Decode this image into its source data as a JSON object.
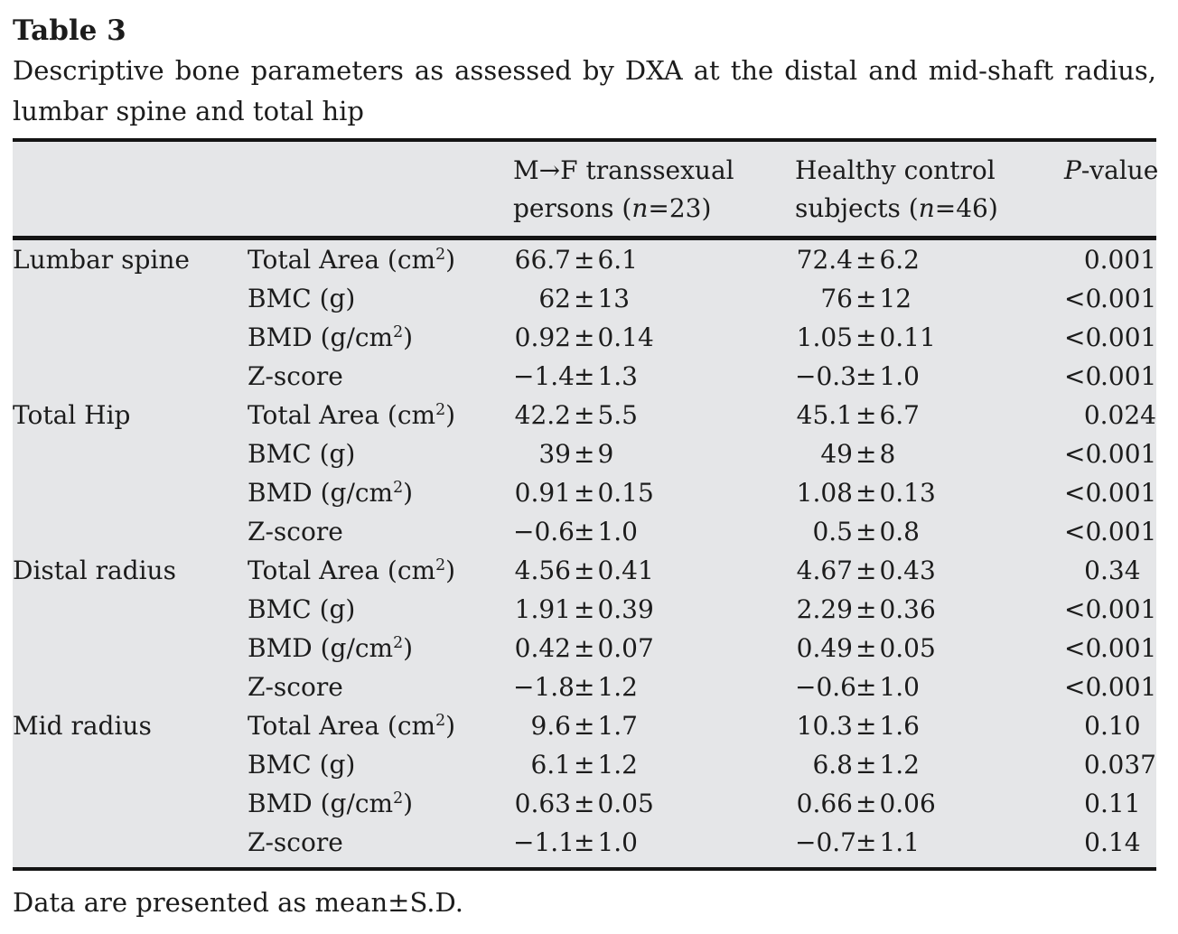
{
  "title": "Table 3",
  "caption": {
    "line1": "Descriptive bone parameters as assessed by DXA at the distal and mid-shaft radius,",
    "line2": "lumbar spine and total hip"
  },
  "header": {
    "region": "",
    "parameter": "",
    "transsexual": {
      "line1": "M→F transsexual",
      "line2": "persons (*n*=23)"
    },
    "control": {
      "line1": "Healthy control",
      "line2": "subjects (*n*=46)"
    },
    "p_value": "*P*-value"
  },
  "groups": [
    {
      "region": "Lumbar spine",
      "rows": [
        {
          "parameter": "Total Area (cm^2)",
          "transsexual": "66.7±6.1",
          "control": "72.4±6.2",
          "p_value": "0.001"
        },
        {
          "parameter": "BMC (g)",
          "transsexual": "62±13",
          "control": "76±12",
          "p_value": "<0.001"
        },
        {
          "parameter": "BMD (g/cm^2)",
          "transsexual": "0.92±0.14",
          "control": "1.05±0.11",
          "p_value": "<0.001"
        },
        {
          "parameter": "Z-score",
          "transsexual": "−1.4±1.3",
          "control": "−0.3±1.0",
          "p_value": "<0.001"
        }
      ]
    },
    {
      "region": "Total Hip",
      "rows": [
        {
          "parameter": "Total Area (cm^2)",
          "transsexual": "42.2±5.5",
          "control": "45.1±6.7",
          "p_value": "0.024"
        },
        {
          "parameter": "BMC (g)",
          "transsexual": "39±9",
          "control": "49±8",
          "p_value": "<0.001"
        },
        {
          "parameter": "BMD (g/cm^2)",
          "transsexual": "0.91±0.15",
          "control": "1.08±0.13",
          "p_value": "<0.001"
        },
        {
          "parameter": "Z-score",
          "transsexual": "−0.6±1.0",
          "control": "0.5±0.8",
          "p_value": "<0.001"
        }
      ]
    },
    {
      "region": "Distal radius",
      "rows": [
        {
          "parameter": "Total Area (cm^2)",
          "transsexual": "4.56±0.41",
          "control": "4.67±0.43",
          "p_value": "0.34"
        },
        {
          "parameter": "BMC (g)",
          "transsexual": "1.91±0.39",
          "control": "2.29±0.36",
          "p_value": "<0.001"
        },
        {
          "parameter": "BMD (g/cm^2)",
          "transsexual": "0.42±0.07",
          "control": "0.49±0.05",
          "p_value": "<0.001"
        },
        {
          "parameter": "Z-score",
          "transsexual": "−1.8±1.2",
          "control": "−0.6±1.0",
          "p_value": "<0.001"
        }
      ]
    },
    {
      "region": "Mid radius",
      "rows": [
        {
          "parameter": "Total Area (cm^2)",
          "transsexual": "9.6±1.7",
          "control": "10.3±1.6",
          "p_value": "0.10"
        },
        {
          "parameter": "BMC (g)",
          "transsexual": "6.1±1.2",
          "control": "6.8±1.2",
          "p_value": "0.037"
        },
        {
          "parameter": "BMD (g/cm^2)",
          "transsexual": "0.63±0.05",
          "control": "0.66±0.06",
          "p_value": "0.11"
        },
        {
          "parameter": "Z-score",
          "transsexual": "−1.1±1.0",
          "control": "−0.7±1.1",
          "p_value": "0.14"
        }
      ]
    }
  ],
  "footnote": "Data are presented as mean±S.D.",
  "colors": {
    "table_background": "#e5e6e8",
    "rule": "#141414",
    "text": "#1c1c1c",
    "page_background": "#ffffff"
  }
}
